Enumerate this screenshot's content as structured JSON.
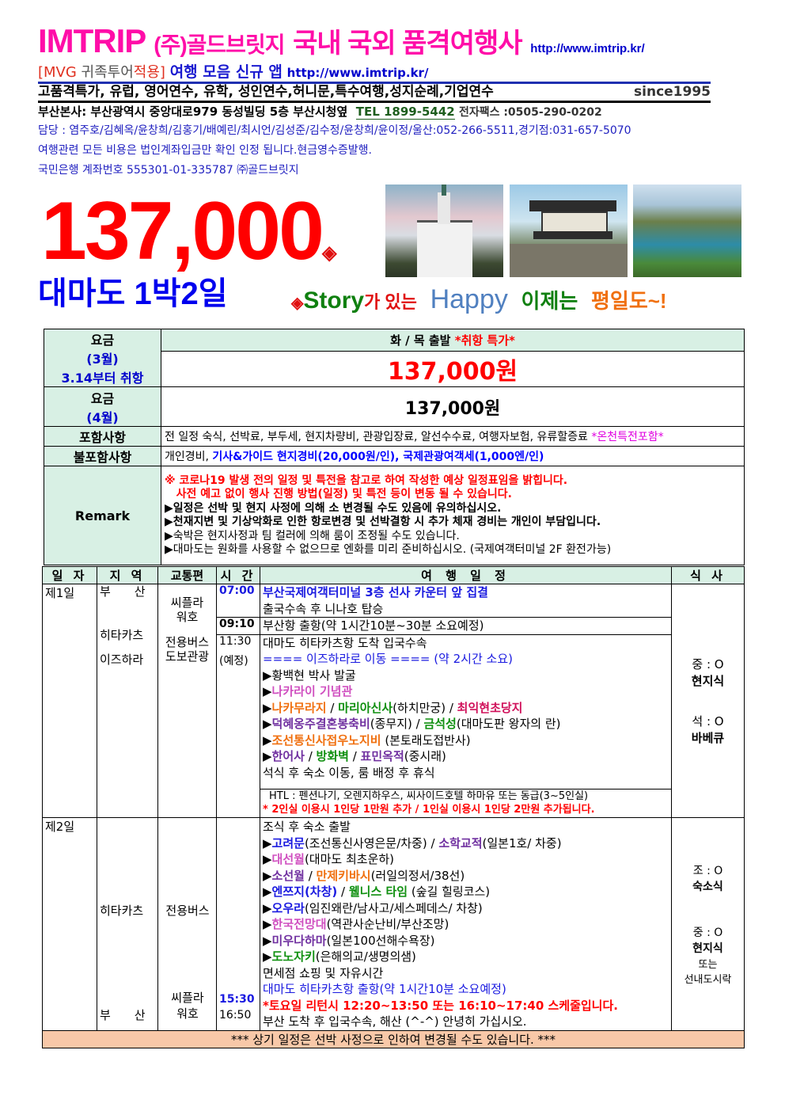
{
  "header": {
    "brand": "IMTRIP",
    "company": "(주)골드브릿지",
    "slogan": "국내 국외 품격여행사",
    "url": "http://www.imtrip.kr/",
    "mvg_open": "[MVG",
    "mvg_mid": " 귀족투어",
    "mvg_close": "적용]",
    "app": "여행 모음 신규 앱",
    "app_url": "http://www.imtrip.kr/",
    "services": "고품격특가, 유럽, 영어연수, 유학, 성인연수,허니문,특수여행,성지순례,기업연수",
    "since": "since1995",
    "address": "부산본사: 부산광역시 중앙대로979 동성빌딩 5층 부산시청옆",
    "tel": "TEL 1899-5442",
    "fax": "전자팩스 :0505-290-0202",
    "staff": "담당 : 염주호/김혜옥/윤창희/김홍기/배예린/최시언/김성준/김수정/윤창희/윤이정/울산:052-266-5511,경기점:031-657-5070",
    "notice": "여행관련 모든 비용은 법인계좌입금만 확인 인정 됩니다.현금영수증발행.",
    "bank": "국민은행 계좌번호 555301-01-335787 ㈜골드브릿지"
  },
  "hero": {
    "price": "137,000",
    "diamond": "◈",
    "title": "대마도 1박2일",
    "tag_story": "Story",
    "tag_ga": "가 있는",
    "tag_happy": "Happy",
    "tag_now": "이제는",
    "tag_weekday": "평일도~!",
    "photos": [
      "church-photo",
      "castle-gate-photo",
      "coastline-photo"
    ]
  },
  "price_table": {
    "label_fare": "요금",
    "label_march": "(3월)",
    "label_reopen": "3.14부터 취항",
    "departure": "화 / 목 출발",
    "special": "*취항 특가*",
    "march_price": "137,000원",
    "label_april": "(4월)",
    "april_price": "137,000원",
    "included_label": "포함사항",
    "included": "전 일정 숙식, 선박료, 부두세, 현지차량비, 관광입장료, 알선수수료, 여행자보험, 유류할증료 ",
    "included_extra": "*온천특전포함*",
    "excluded_label": "불포함사항",
    "excluded_a": "개인경비, ",
    "excluded_b": "기사&가이드 현지경비(20,000원/인), 국제관광여객세(1,000엔/인)",
    "remark_label": "Remark",
    "remarks_red": [
      "※ 코로나19 발생 전의 일정 및 특전을 참고로 하여 작성한 예상 일정표임을 밝힙니다.",
      "   사전 예고 없이 행사 진행 방법(일정) 및 특전 등이 변동 될 수 있습니다."
    ],
    "remarks_bold": [
      "▶일정은 선박 및 현지 사정에 의해 소 변경될 수도 있음에 유의하십시오.",
      "▶천재지변 및 기상악화로 인한 항로변경 및 선박결항 시 추가 체재 경비는 개인이 부담입니다."
    ],
    "remarks": [
      "▶숙박은 현지사정과 팀 컬러에 의해 룸이 조정될 수도 있습니다.",
      "▶대마도는 원화를 사용할 수 없으므로 엔화를 미리 준비하십시오. (국제여객터미널 2F 환전가능)"
    ]
  },
  "itinerary": {
    "headers": [
      "일 자",
      "지 역",
      "교통편",
      "시 간",
      "여 행 일 정",
      "식 사"
    ],
    "day1": {
      "day": "제1일",
      "regions": [
        "부　　산",
        "히타카츠",
        "이즈하라"
      ],
      "transport": [
        "씨플라",
        "워호",
        "전용버스",
        "도보관광"
      ],
      "times": [
        "07:00",
        "09:10",
        "11:30",
        "(예정)"
      ],
      "block1": [
        [
          {
            "t": "부산국제여객터미널 3층 선사 카운터 앞 집결",
            "s": "bblue"
          }
        ],
        [
          {
            "t": "출국수속 후 니나호 탑승",
            "s": "black"
          }
        ]
      ],
      "block2": [
        [
          {
            "t": "부산항 출항(약 1시간10분~30분 소요예정)",
            "s": "black"
          }
        ]
      ],
      "block3": [
        [
          {
            "t": "대마도 히타카츠항 도착 입국수속",
            "s": "black"
          }
        ],
        [
          {
            "t": "==== 이즈하라로 이동 ==== (약 2시간 소요)",
            "s": "blue"
          }
        ],
        [
          {
            "t": "▶황백현 박사 발굴",
            "s": "black"
          }
        ],
        [
          {
            "t": "▶",
            "s": "black"
          },
          {
            "t": "나카라이 기념관",
            "s": "pink"
          }
        ],
        [
          {
            "t": "▶",
            "s": "black"
          },
          {
            "t": "나카무라지",
            "s": "orange"
          },
          {
            "t": " / ",
            "s": "black"
          },
          {
            "t": "마리아신사",
            "s": "green"
          },
          {
            "t": "(하치만궁) / ",
            "s": "black"
          },
          {
            "t": "최익현초당지",
            "s": "crimson"
          }
        ],
        [
          {
            "t": "▶",
            "s": "black"
          },
          {
            "t": "덕혜옹주결혼봉축비",
            "s": "purple"
          },
          {
            "t": "(종무지) / ",
            "s": "black"
          },
          {
            "t": "금석성",
            "s": "green"
          },
          {
            "t": "(대마도판 왕자의 란)",
            "s": "black"
          }
        ],
        [
          {
            "t": "▶",
            "s": "black"
          },
          {
            "t": "조선통신사접우노지비",
            "s": "orange"
          },
          {
            "t": " (본토래도접반사)",
            "s": "black"
          }
        ],
        [
          {
            "t": "▶",
            "s": "black"
          },
          {
            "t": "한어사",
            "s": "purple"
          },
          {
            "t": " / ",
            "s": "black"
          },
          {
            "t": "방화벽",
            "s": "green"
          },
          {
            "t": " / ",
            "s": "black"
          },
          {
            "t": "표민옥적",
            "s": "purple"
          },
          {
            "t": "(중시래)",
            "s": "black"
          }
        ],
        [
          {
            "t": "석식 후 숙소 이동, 룸 배정 후 휴식",
            "s": "black"
          }
        ]
      ],
      "hotel": "HTL : 펜션나기, 오렌지하우스, 씨사이드호텔 하마유 또는 동급(3~5인실)",
      "hotel_note": "* 2인실 이용시 1인당 1만원 추가 / 1인실 이용시 1인당 2만원 추가됩니다.",
      "meals": [
        "중 : O",
        "현지식",
        "석 : O",
        "바베큐"
      ]
    },
    "day2": {
      "day": "제2일",
      "regions": [
        "히타카츠",
        "부　　산"
      ],
      "transport": [
        "전용버스",
        "씨플라",
        "워호"
      ],
      "times": [
        "15:30",
        "16:50"
      ],
      "lines": [
        [
          {
            "t": "조식 후 숙소 출발",
            "s": "black"
          }
        ],
        [
          {
            "t": "▶",
            "s": "black"
          },
          {
            "t": "고려문",
            "s": "bblue"
          },
          {
            "t": "(조선통신사영은문/차중) / ",
            "s": "black"
          },
          {
            "t": "소학교적",
            "s": "purple"
          },
          {
            "t": "(일본1호/ 차중)",
            "s": "black"
          }
        ],
        [
          {
            "t": "▶",
            "s": "black"
          },
          {
            "t": "대선월",
            "s": "pink"
          },
          {
            "t": "(대마도 최초운하)",
            "s": "black"
          }
        ],
        [
          {
            "t": "▶",
            "s": "black"
          },
          {
            "t": "소선월",
            "s": "purple"
          },
          {
            "t": " / ",
            "s": "black"
          },
          {
            "t": "만제키바시",
            "s": "orange"
          },
          {
            "t": "(러일의정서/38선)",
            "s": "black"
          }
        ],
        [
          {
            "t": "▶",
            "s": "black"
          },
          {
            "t": "엔쯔지(차창)",
            "s": "bblue"
          },
          {
            "t": " / ",
            "s": "black"
          },
          {
            "t": "웰니스 타임",
            "s": "green"
          },
          {
            "t": " (숲길 힐링코스)",
            "s": "black"
          }
        ],
        [
          {
            "t": "▶",
            "s": "black"
          },
          {
            "t": "오우라",
            "s": "bblue"
          },
          {
            "t": "(임진왜란/남사고/세스페데스/ 차창)",
            "s": "black"
          }
        ],
        [
          {
            "t": "▶",
            "s": "black"
          },
          {
            "t": "한국전망대",
            "s": "pink"
          },
          {
            "t": "(역관사순난비/부산조망)",
            "s": "black"
          }
        ],
        [
          {
            "t": "▶",
            "s": "black"
          },
          {
            "t": "미우다하마",
            "s": "purple"
          },
          {
            "t": "(일본100선해수욕장)",
            "s": "black"
          }
        ],
        [
          {
            "t": "▶",
            "s": "black"
          },
          {
            "t": "도노자키",
            "s": "green"
          },
          {
            "t": "(은해의교/생명의샘)",
            "s": "black"
          }
        ],
        [
          {
            "t": "면세점 쇼핑 및 자유시간",
            "s": "black"
          }
        ],
        [
          {
            "t": "대마도 히타카츠항 출항(약 1시간10분 소요예정)",
            "s": "blue"
          }
        ],
        [
          {
            "t": "*토요일 리턴시 12:20~13:50 또는 16:10~17:40 스케줄입니다.",
            "s": "red"
          }
        ],
        [
          {
            "t": "부산 도착 후 입국수속, 해산 (^-^) 안녕히 가십시오.",
            "s": "black"
          }
        ]
      ],
      "meals": [
        "조 : O",
        "숙소식",
        "중 : O",
        "현지식",
        "또는",
        "선내도시락"
      ]
    },
    "footer": "*** 상기 일정은 선박 사정으로 인하여 변경될 수도 있습니다. ***"
  }
}
